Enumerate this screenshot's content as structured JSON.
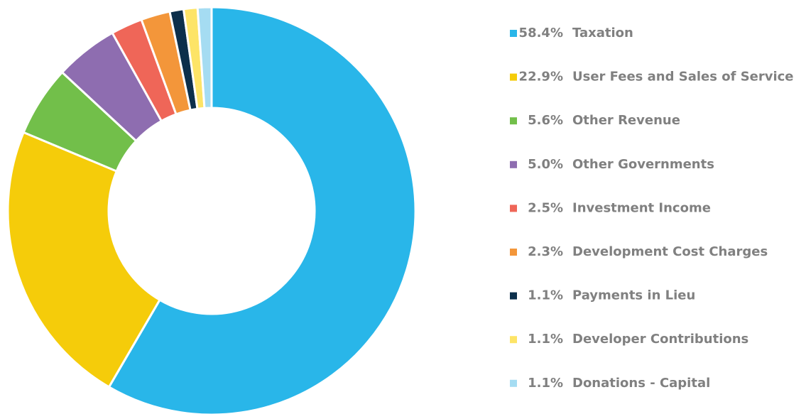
{
  "chart_data": {
    "type": "pie",
    "categories": [
      "Taxation",
      "User Fees and Sales of Service",
      "Other Revenue",
      "Other Governments",
      "Investment Income",
      "Development Cost Charges",
      "Payments in Lieu",
      "Developer Contributions",
      "Donations - Capital"
    ],
    "values": [
      58.4,
      22.9,
      5.6,
      5.0,
      2.5,
      2.3,
      1.1,
      1.1,
      1.1
    ],
    "value_labels": [
      "58.4%",
      "22.9%",
      "5.6%",
      "5.0%",
      "2.5%",
      "2.3%",
      "1.1%",
      "1.1%",
      "1.1%"
    ],
    "colors": [
      "#29b6e9",
      "#f5cc0a",
      "#72bf4a",
      "#8e6db0",
      "#ef6658",
      "#f3963a",
      "#0c2f4b",
      "#fde467",
      "#a5dcf2"
    ]
  }
}
